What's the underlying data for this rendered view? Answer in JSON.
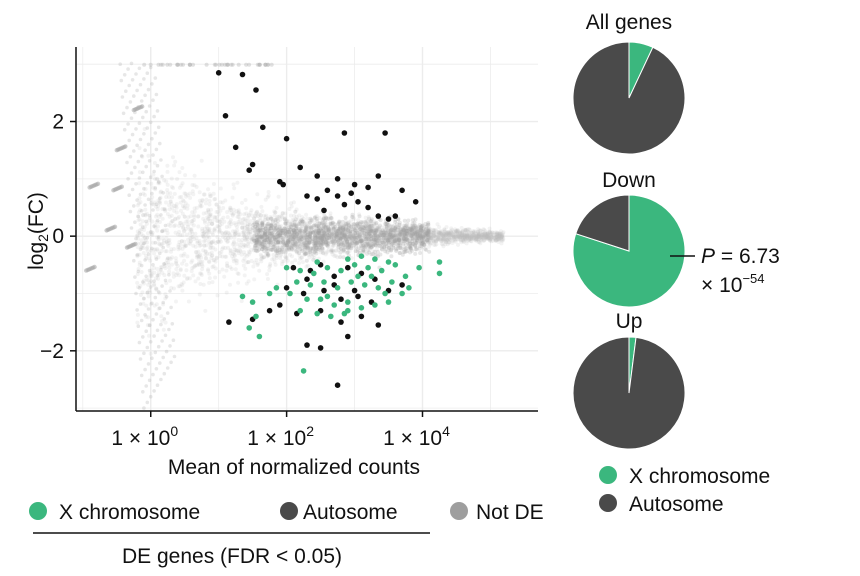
{
  "chart_data": [
    {
      "type": "scatter",
      "title": "",
      "xlabel": "Mean of normalized counts",
      "ylabel_main": "log",
      "ylabel_sub": "2",
      "ylabel_tail": "(FC)",
      "xscale": "log",
      "xlim_log10": [
        -1.1,
        5.7
      ],
      "ylim": [
        -3.05,
        3.3
      ],
      "x_ticks": [
        {
          "base": "1 × 10",
          "exp": "0",
          "log10": 0
        },
        {
          "base": "1 × 10",
          "exp": "2",
          "log10": 2
        },
        {
          "base": "1 × 10",
          "exp": "4",
          "log10": 4
        }
      ],
      "y_ticks": [
        {
          "label": "2",
          "value": 2
        },
        {
          "label": "0",
          "value": 0
        },
        {
          "label": "−2",
          "value": -2
        }
      ],
      "grid": true,
      "colors": {
        "x_chromosome": "#3bb77e",
        "autosome": "#111111",
        "not_de": "#bdbdbd"
      },
      "series": [
        {
          "name": "Autosome",
          "color": "#111111",
          "points_log10x_y": [
            [
              1.0,
              2.85
            ],
            [
              1.35,
              2.82
            ],
            [
              1.55,
              2.55
            ],
            [
              1.1,
              2.1
            ],
            [
              1.65,
              1.9
            ],
            [
              1.25,
              1.55
            ],
            [
              2.0,
              1.7
            ],
            [
              2.85,
              1.8
            ],
            [
              3.45,
              1.8
            ],
            [
              1.5,
              1.25
            ],
            [
              1.45,
              1.15
            ],
            [
              1.9,
              0.95
            ],
            [
              1.95,
              0.9
            ],
            [
              2.2,
              1.2
            ],
            [
              2.45,
              1.05
            ],
            [
              2.75,
              1.0
            ],
            [
              3.0,
              0.9
            ],
            [
              3.2,
              0.85
            ],
            [
              3.35,
              1.05
            ],
            [
              2.3,
              0.7
            ],
            [
              2.45,
              0.65
            ],
            [
              2.6,
              0.8
            ],
            [
              2.75,
              0.7
            ],
            [
              2.95,
              0.75
            ],
            [
              3.05,
              0.6
            ],
            [
              3.2,
              0.5
            ],
            [
              3.35,
              0.35
            ],
            [
              3.5,
              0.3
            ],
            [
              3.6,
              0.35
            ],
            [
              3.9,
              0.6
            ],
            [
              3.7,
              0.8
            ],
            [
              2.55,
              0.45
            ],
            [
              2.85,
              0.55
            ],
            [
              2.1,
              -0.55
            ],
            [
              2.35,
              -0.6
            ],
            [
              2.5,
              -0.5
            ],
            [
              2.7,
              -0.7
            ],
            [
              2.9,
              -0.55
            ],
            [
              3.1,
              -0.65
            ],
            [
              3.3,
              -0.75
            ],
            [
              2.0,
              -0.9
            ],
            [
              2.25,
              -1.0
            ],
            [
              2.55,
              -0.95
            ],
            [
              2.8,
              -1.1
            ],
            [
              3.05,
              -1.05
            ],
            [
              3.25,
              -1.15
            ],
            [
              3.5,
              -0.95
            ],
            [
              3.7,
              -0.85
            ],
            [
              1.9,
              -1.2
            ],
            [
              2.15,
              -1.35
            ],
            [
              2.5,
              -1.3
            ],
            [
              2.8,
              -1.5
            ],
            [
              3.1,
              -1.4
            ],
            [
              3.35,
              -1.55
            ],
            [
              1.15,
              -1.5
            ],
            [
              1.5,
              -1.45
            ],
            [
              1.75,
              -1.3
            ],
            [
              2.3,
              -1.9
            ],
            [
              2.5,
              -1.95
            ],
            [
              2.9,
              -1.75
            ],
            [
              2.3,
              -0.75
            ],
            [
              2.7,
              -0.85
            ],
            [
              3.0,
              -0.95
            ],
            [
              2.75,
              -2.6
            ]
          ]
        },
        {
          "name": "X chromosome",
          "color": "#3bb77e",
          "points_log10x_y": [
            [
              2.0,
              -0.55
            ],
            [
              2.2,
              -0.6
            ],
            [
              2.4,
              -0.65
            ],
            [
              2.6,
              -0.55
            ],
            [
              2.8,
              -0.6
            ],
            [
              3.0,
              -0.5
            ],
            [
              3.2,
              -0.55
            ],
            [
              3.4,
              -0.6
            ],
            [
              3.6,
              -0.5
            ],
            [
              2.9,
              -0.4
            ],
            [
              3.1,
              -0.35
            ],
            [
              3.3,
              -0.4
            ],
            [
              3.5,
              -0.45
            ],
            [
              2.15,
              -0.8
            ],
            [
              2.35,
              -0.85
            ],
            [
              2.55,
              -0.8
            ],
            [
              2.75,
              -0.9
            ],
            [
              2.95,
              -0.8
            ],
            [
              3.15,
              -0.85
            ],
            [
              3.35,
              -0.9
            ],
            [
              3.55,
              -0.8
            ],
            [
              3.75,
              -0.7
            ],
            [
              3.95,
              -0.55
            ],
            [
              2.05,
              -1.0
            ],
            [
              2.3,
              -1.1
            ],
            [
              2.5,
              -1.1
            ],
            [
              2.7,
              -1.2
            ],
            [
              2.9,
              -1.15
            ],
            [
              3.1,
              -1.25
            ],
            [
              3.3,
              -1.2
            ],
            [
              3.5,
              -1.15
            ],
            [
              3.7,
              -1.0
            ],
            [
              2.2,
              -1.3
            ],
            [
              2.45,
              -1.35
            ],
            [
              2.65,
              -1.4
            ],
            [
              2.9,
              -1.3
            ],
            [
              1.35,
              -1.05
            ],
            [
              1.5,
              -1.15
            ],
            [
              1.55,
              -1.4
            ],
            [
              1.45,
              -1.6
            ],
            [
              1.6,
              -1.75
            ],
            [
              2.25,
              -2.35
            ],
            [
              4.25,
              -0.45
            ],
            [
              4.25,
              -0.65
            ],
            [
              3.8,
              -0.9
            ],
            [
              1.75,
              -1.0
            ],
            [
              2.6,
              -1.05
            ],
            [
              3.05,
              -0.7
            ],
            [
              3.25,
              -0.7
            ],
            [
              2.45,
              -0.45
            ],
            [
              2.85,
              -1.35
            ],
            [
              3.45,
              -1.0
            ],
            [
              1.85,
              -0.9
            ]
          ]
        },
        {
          "name": "Not DE",
          "color": "#bdbdbd",
          "points_log10x_y": []
        }
      ]
    },
    {
      "type": "pie",
      "title": "All genes",
      "slices": [
        {
          "name": "X chromosome",
          "fraction": 0.07,
          "color": "#3bb77e"
        },
        {
          "name": "Autosome",
          "fraction": 0.93,
          "color": "#4a4a4a"
        }
      ]
    },
    {
      "type": "pie",
      "title": "Down",
      "slices": [
        {
          "name": "X chromosome",
          "fraction": 0.8,
          "color": "#3bb77e"
        },
        {
          "name": "Autosome",
          "fraction": 0.2,
          "color": "#4a4a4a"
        }
      ]
    },
    {
      "type": "pie",
      "title": "Up",
      "slices": [
        {
          "name": "X chromosome",
          "fraction": 0.02,
          "color": "#3bb77e"
        },
        {
          "name": "Autosome",
          "fraction": 0.98,
          "color": "#4a4a4a"
        }
      ]
    }
  ],
  "annotation": {
    "p_label": "P",
    "p_value": " = 6.73",
    "p_times": "× 10",
    "p_exp": "−54"
  },
  "scatter_legend": {
    "items": [
      {
        "label": "X chromosome",
        "color": "#3bb77e"
      },
      {
        "label": "Autosome",
        "color": "#4a4a4a"
      },
      {
        "label": "Not DE",
        "color": "#9e9e9e"
      }
    ],
    "caption": "DE genes (FDR < 0.05)"
  },
  "pie_legend": {
    "items": [
      {
        "label": "X chromosome",
        "color": "#3bb77e"
      },
      {
        "label": "Autosome",
        "color": "#4a4a4a"
      }
    ]
  }
}
